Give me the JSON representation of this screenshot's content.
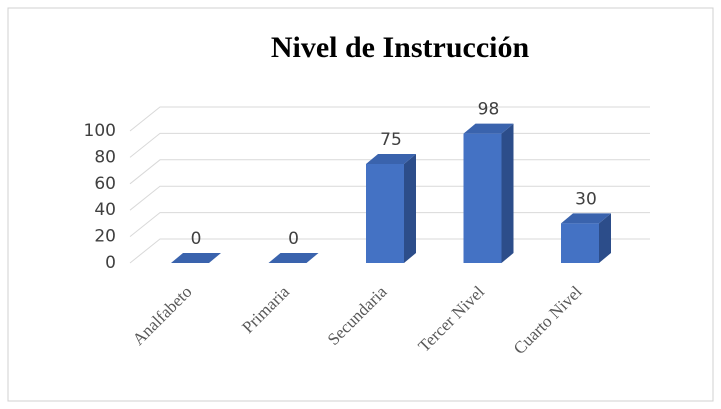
{
  "chart_data": {
    "type": "bar3d",
    "title": "Nivel de Instrucción",
    "categories": [
      "Analfabeto",
      "Primaria",
      "Secundaria",
      "Tercer Nivel",
      "Cuarto Nivel"
    ],
    "values": [
      0,
      0,
      75,
      98,
      30
    ],
    "color": "#4472c4",
    "ylim": [
      0,
      100
    ],
    "yticks": [
      0,
      20,
      40,
      60,
      80,
      100
    ],
    "grid": true
  }
}
